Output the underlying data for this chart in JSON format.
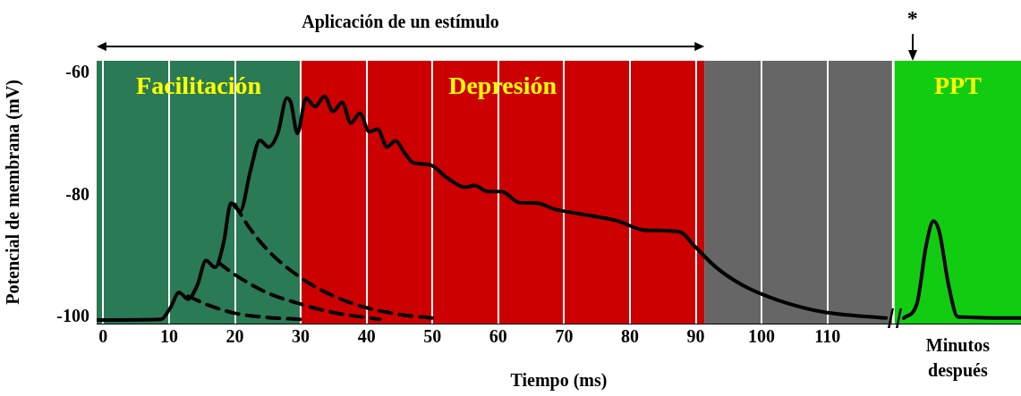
{
  "chart_data": {
    "type": "line",
    "xlabel": "Tiempo (ms)",
    "ylabel": "Potencial de membrana (mV)",
    "xlim": [
      -1,
      139.4
    ],
    "ylim": [
      -101,
      -58
    ],
    "xticks": [
      0,
      10,
      20,
      30,
      40,
      50,
      60,
      70,
      80,
      90,
      100,
      110
    ],
    "yticks": [
      -60,
      -80,
      -100
    ],
    "grid": "x",
    "legend": false,
    "marker": "none",
    "bands": [
      {
        "axis": "x",
        "from": -1,
        "to": 30,
        "label": "Facilitación",
        "color": "#2a7a55"
      },
      {
        "axis": "x",
        "from": 30,
        "to": 91.3,
        "label": "Depresión",
        "color": "#cc0000"
      },
      {
        "axis": "x",
        "from": 91.3,
        "to": 119.8,
        "color": "#666666"
      },
      {
        "axis": "x",
        "from": 120.2,
        "to": 139.4,
        "label": "PPT",
        "color": "#11cc11"
      }
    ],
    "annotations": [
      "Aplicación de un estímulo",
      "*",
      "Minutos después"
    ],
    "series": [
      {
        "color": "#000000",
        "line_style": "solid",
        "x": [
          -1,
          8.8,
          10.2,
          11.5,
          12.9,
          14.3,
          15.6,
          17,
          18.3,
          19.4,
          20.8,
          22.4,
          23.8,
          25.1,
          26.5,
          27.9,
          28.5,
          29.5,
          30.8,
          32.2,
          33.6,
          34.9,
          36.3,
          37.6,
          39,
          40.4,
          41.7,
          43.1,
          44.4,
          45.8,
          47.1,
          49.6,
          52.3,
          55,
          56.4,
          58.4,
          60.5,
          63.2,
          65.9,
          68.6,
          72.7,
          78.1,
          82.2,
          87.6,
          89.7,
          93.1,
          97.1,
          102.6,
          109.4,
          118.9,
          120,
          121.6,
          123.6,
          125,
          126.1,
          127,
          128.4,
          129.8,
          139.4
        ],
        "values": [
          -100.4,
          -100.3,
          -98.4,
          -95.9,
          -97,
          -94.7,
          -90.7,
          -91.8,
          -87.7,
          -81.3,
          -82.6,
          -75.8,
          -71,
          -72.1,
          -69.9,
          -64.1,
          -64.8,
          -69.9,
          -64.1,
          -65.5,
          -63.8,
          -66.3,
          -64.8,
          -68.2,
          -66.6,
          -69.6,
          -69.2,
          -72.1,
          -71.1,
          -73.1,
          -74.7,
          -75,
          -77.2,
          -78.7,
          -78.4,
          -79.4,
          -79.4,
          -81.2,
          -81.3,
          -82.3,
          -83.1,
          -84.2,
          -85.7,
          -86,
          -88.2,
          -91.8,
          -94.7,
          -97.2,
          -99.1,
          -100.1,
          null,
          -100.1,
          -97.7,
          -88.2,
          -84.2,
          -86,
          -94.7,
          -99.9,
          -100.1
        ]
      },
      {
        "color": "#000000",
        "line_style": "dashed",
        "x": [
          12.9,
          16,
          20,
          25,
          30
        ],
        "values": [
          -96.5,
          -98,
          -99.3,
          -100,
          -100.3
        ]
      },
      {
        "color": "#000000",
        "line_style": "dashed",
        "x": [
          17.5,
          20,
          25,
          30,
          35,
          42
        ],
        "values": [
          -91,
          -93,
          -96,
          -97.8,
          -99.2,
          -100.3
        ]
      },
      {
        "color": "#000000",
        "line_style": "dashed",
        "x": [
          20,
          22,
          25,
          30,
          35,
          40,
          45,
          50
        ],
        "values": [
          -81.5,
          -85,
          -89,
          -93.5,
          -96.5,
          -98.4,
          -99.5,
          -100.1
        ]
      }
    ]
  }
}
